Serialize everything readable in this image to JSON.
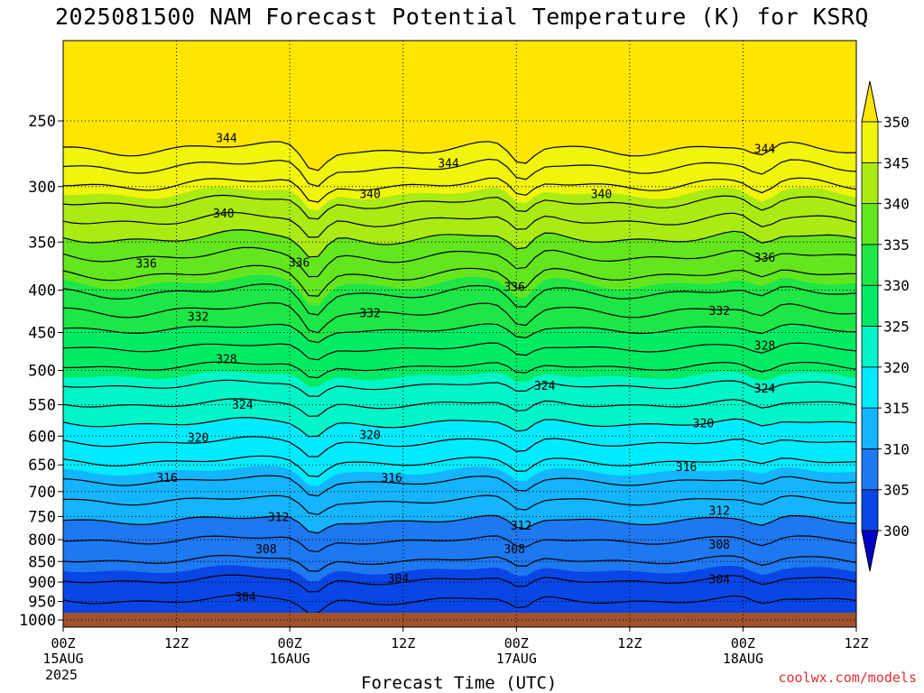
{
  "title": "2025081500 NAM Forecast Potential Temperature (K) for KSRQ",
  "watermark": "coolwx.com/models",
  "chart_data": {
    "type": "contour",
    "title": "2025081500 NAM Forecast Potential Temperature (K) for KSRQ",
    "xlabel": "Forecast Time (UTC)",
    "ylabel": "",
    "x_ticks": [
      {
        "hour": 0,
        "label": "00Z",
        "date": "15AUG",
        "year": "2025"
      },
      {
        "hour": 12,
        "label": "12Z",
        "date": "",
        "year": ""
      },
      {
        "hour": 24,
        "label": "00Z",
        "date": "16AUG",
        "year": ""
      },
      {
        "hour": 36,
        "label": "12Z",
        "date": "",
        "year": ""
      },
      {
        "hour": 48,
        "label": "00Z",
        "date": "17AUG",
        "year": ""
      },
      {
        "hour": 60,
        "label": "12Z",
        "date": "",
        "year": ""
      },
      {
        "hour": 72,
        "label": "00Z",
        "date": "18AUG",
        "year": ""
      },
      {
        "hour": 84,
        "label": "12Z",
        "date": "",
        "year": ""
      }
    ],
    "xlim": [
      0,
      84
    ],
    "y_ticks": [
      250,
      300,
      350,
      400,
      450,
      500,
      550,
      600,
      650,
      700,
      750,
      800,
      850,
      900,
      950,
      1000
    ],
    "ylim_hPa": [
      200,
      1020
    ],
    "y_scale": "log-pressure",
    "grid": true,
    "colorbar": {
      "levels": [
        300,
        305,
        310,
        315,
        320,
        325,
        330,
        335,
        340,
        345,
        350
      ],
      "labels": [
        "300",
        "305",
        "310",
        "315",
        "320",
        "325",
        "330",
        "335",
        "340",
        "345",
        "350"
      ],
      "colors": [
        "#0000c8",
        "#0a46e6",
        "#1e78f0",
        "#14b4ff",
        "#00ebff",
        "#00f5c8",
        "#00eb64",
        "#1ee646",
        "#64e61e",
        "#aaeb14",
        "#f0f50a",
        "#ffe600"
      ]
    },
    "contour_interval": 2,
    "contour_labels": [
      {
        "value": 344,
        "hour": 17.3,
        "p": 262
      },
      {
        "value": 344,
        "hour": 40.8,
        "p": 281
      },
      {
        "value": 344,
        "hour": 74.3,
        "p": 270
      },
      {
        "value": 340,
        "hour": 17.0,
        "p": 323
      },
      {
        "value": 340,
        "hour": 32.5,
        "p": 306
      },
      {
        "value": 340,
        "hour": 57.0,
        "p": 306
      },
      {
        "value": 336,
        "hour": 8.8,
        "p": 371
      },
      {
        "value": 336,
        "hour": 25.0,
        "p": 370
      },
      {
        "value": 336,
        "hour": 47.8,
        "p": 396
      },
      {
        "value": 336,
        "hour": 74.3,
        "p": 365
      },
      {
        "value": 332,
        "hour": 14.3,
        "p": 430
      },
      {
        "value": 332,
        "hour": 32.5,
        "p": 426
      },
      {
        "value": 332,
        "hour": 69.5,
        "p": 423
      },
      {
        "value": 328,
        "hour": 17.3,
        "p": 484
      },
      {
        "value": 328,
        "hour": 74.3,
        "p": 466
      },
      {
        "value": 324,
        "hour": 19.0,
        "p": 549
      },
      {
        "value": 324,
        "hour": 51.0,
        "p": 521
      },
      {
        "value": 324,
        "hour": 74.3,
        "p": 525
      },
      {
        "value": 320,
        "hour": 14.3,
        "p": 602
      },
      {
        "value": 320,
        "hour": 32.5,
        "p": 597
      },
      {
        "value": 320,
        "hour": 67.8,
        "p": 578
      },
      {
        "value": 316,
        "hour": 11.0,
        "p": 673
      },
      {
        "value": 316,
        "hour": 34.8,
        "p": 673
      },
      {
        "value": 316,
        "hour": 66.0,
        "p": 653
      },
      {
        "value": 312,
        "hour": 22.8,
        "p": 750
      },
      {
        "value": 312,
        "hour": 48.5,
        "p": 768
      },
      {
        "value": 312,
        "hour": 69.5,
        "p": 737
      },
      {
        "value": 308,
        "hour": 21.5,
        "p": 820
      },
      {
        "value": 308,
        "hour": 47.8,
        "p": 820
      },
      {
        "value": 308,
        "hour": 69.5,
        "p": 810
      },
      {
        "value": 304,
        "hour": 35.5,
        "p": 890
      },
      {
        "value": 304,
        "hour": 19.3,
        "p": 937
      },
      {
        "value": 304,
        "hour": 69.5,
        "p": 892
      }
    ]
  }
}
